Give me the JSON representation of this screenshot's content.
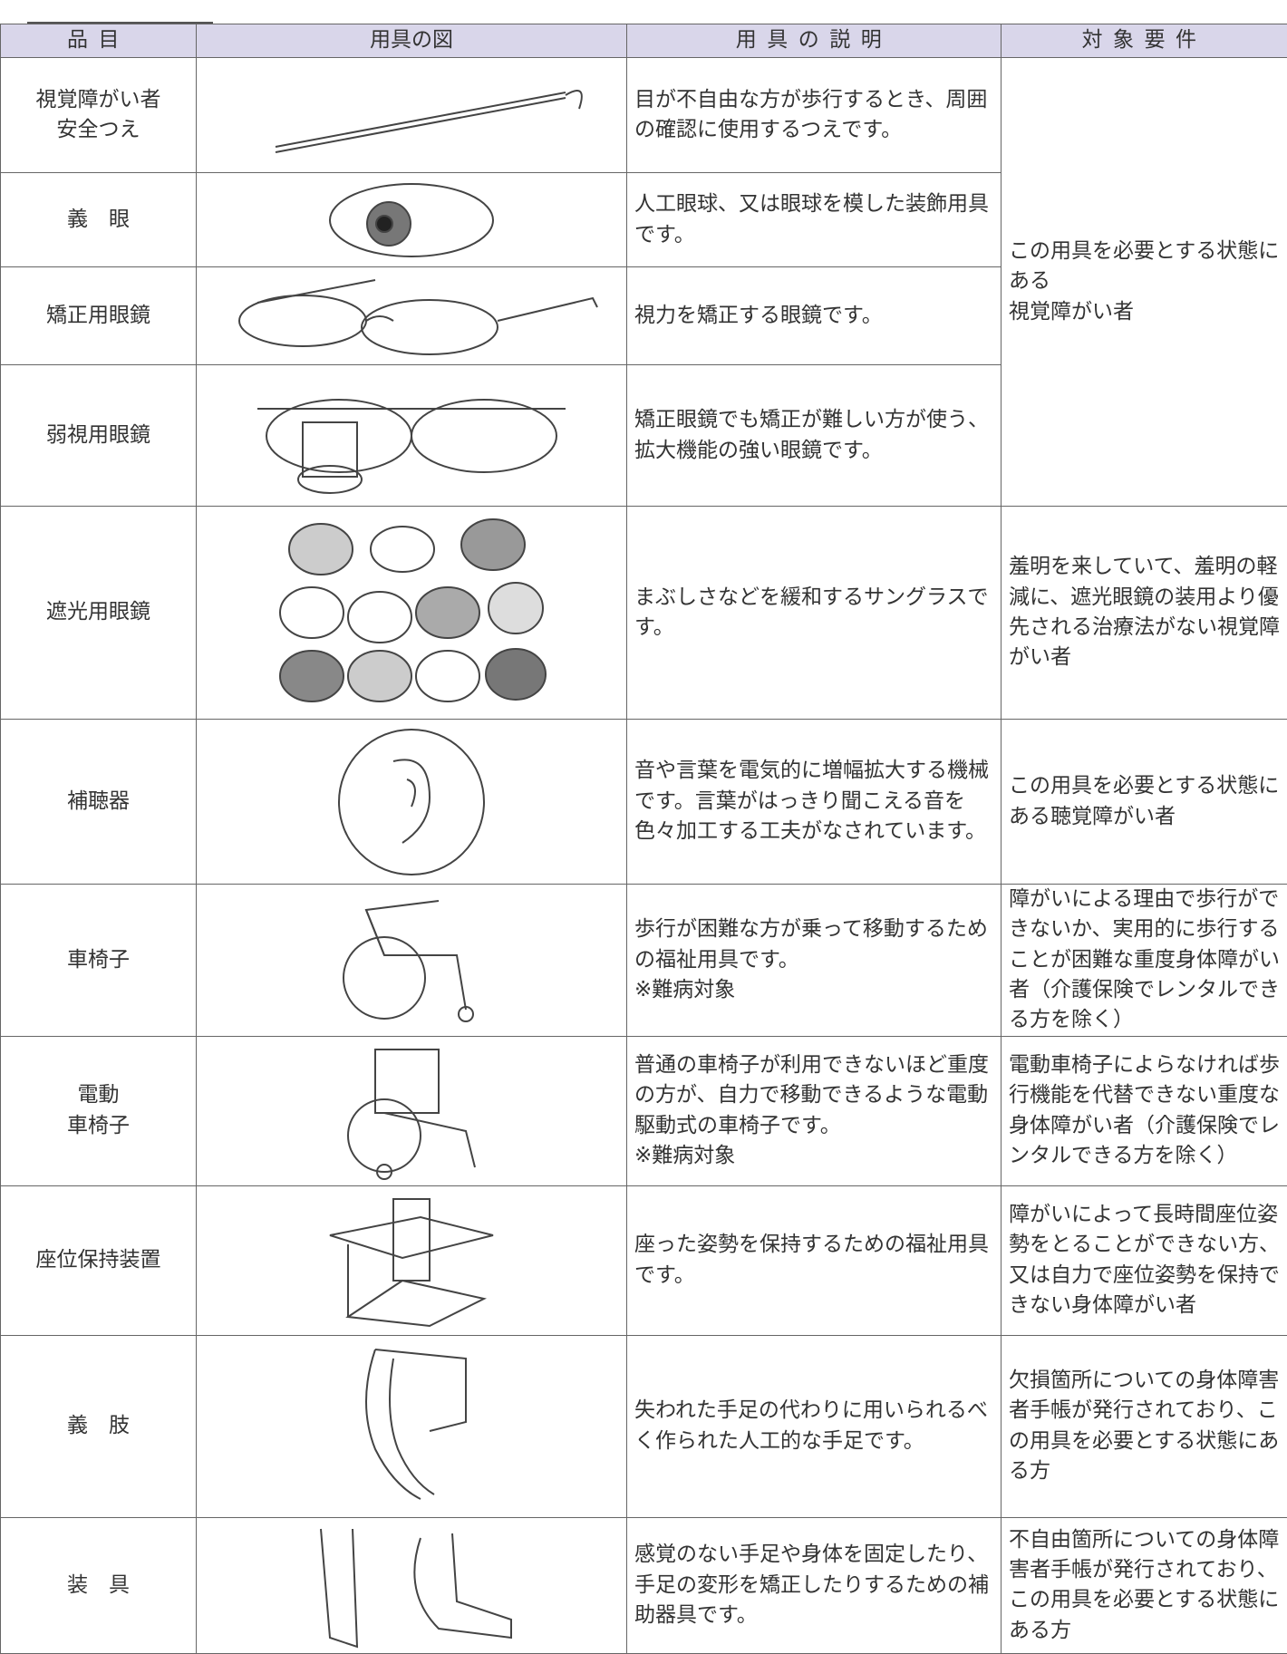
{
  "table": {
    "columns": [
      "品目",
      "用具の図",
      "用具の説明",
      "対象要件"
    ],
    "rows": [
      {
        "item": "視覚障がい者\n安全つえ",
        "description": "目が不自由な方が歩行するとき、周囲の確認に使用するつえです。",
        "requirement": "この用具を必要とする状態にある\n視覚障がい者"
      },
      {
        "item": "義　眼",
        "description": "人工眼球、又は眼球を模した装飾用具です。"
      },
      {
        "item": "矯正用眼鏡",
        "description": "視力を矯正する眼鏡です。"
      },
      {
        "item": "弱視用眼鏡",
        "description": "矯正眼鏡でも矯正が難しい方が使う、拡大機能の強い眼鏡です。"
      },
      {
        "item": "遮光用眼鏡",
        "description": "まぶしさなどを緩和するサングラスです。",
        "requirement": "羞明を来していて、羞明の軽減に、遮光眼鏡の装用より優先される治療法がない視覚障がい者"
      },
      {
        "item": "補聴器",
        "description": "音や言葉を電気的に増幅拡大する機械です。言葉がはっきり聞こえる音を色々加工する工夫がなされています。",
        "requirement": "この用具を必要とする状態にある聴覚障がい者"
      },
      {
        "item": "車椅子",
        "description": "歩行が困難な方が乗って移動するための福祉用具です。\n※難病対象",
        "requirement": "障がいによる理由で歩行ができないか、実用的に歩行することが困難な重度身体障がい者（介護保険でレンタルできる方を除く）"
      },
      {
        "item": "電動\n車椅子",
        "description": "普通の車椅子が利用できないほど重度の方が、自力で移動できるような電動駆動式の車椅子です。\n※難病対象",
        "requirement": "電動車椅子によらなければ歩行機能を代替できない重度な身体障がい者（介護保険でレンタルできる方を除く）"
      },
      {
        "item": "座位保持装置",
        "description": "座った姿勢を保持するための福祉用具です。",
        "requirement": "障がいによって長時間座位姿勢をとることができない方、又は自力で座位姿勢を保持できない身体障がい者"
      },
      {
        "item": "義　肢",
        "description": "失われた手足の代わりに用いられるべく作られた人工的な手足です。",
        "requirement": "欠損箇所についての身体障害者手帳が発行されており、この用具を必要とする状態にある方"
      },
      {
        "item": "装　具",
        "description": "感覚のない手足や身体を固定したり、手足の変形を矯正したりするための補助器具です。",
        "requirement": "不自由箇所についての身体障害者手帳が発行されており、この用具を必要とする状態にある方"
      }
    ]
  }
}
